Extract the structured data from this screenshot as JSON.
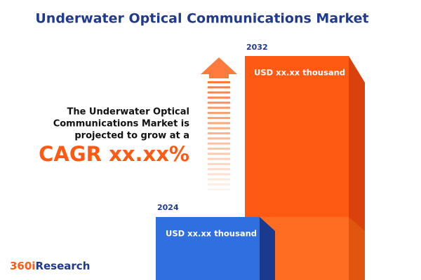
{
  "title": "Underwater Optical Communications Market",
  "description": [
    "The Underwater Optical",
    "Communications Market is",
    "projected to grow at a"
  ],
  "cagr": "CAGR xx.xx%",
  "bars": [
    {
      "year": "2024",
      "label": "USD xx.xx thousand"
    },
    {
      "year": "2032",
      "label": "USD xx.xx thousand"
    }
  ],
  "logo": {
    "prefix": "360i",
    "suffix": "Research"
  }
}
